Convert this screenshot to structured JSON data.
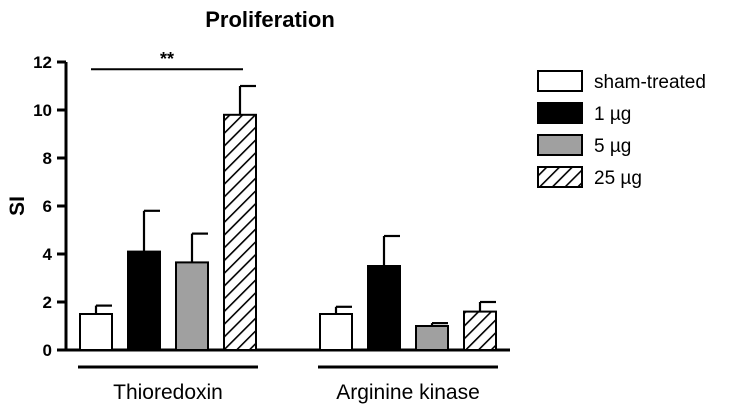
{
  "chart_data": {
    "type": "bar",
    "title": "Proliferation",
    "ylabel": "SI",
    "xlabel": "",
    "ylim": [
      0,
      12
    ],
    "yticks": [
      0,
      2,
      4,
      6,
      8,
      10,
      12
    ],
    "categories": [
      "Thioredoxin",
      "Arginine kinase"
    ],
    "series": [
      {
        "name": "sham-treated",
        "values": [
          1.5,
          1.5
        ],
        "errors": [
          0.35,
          0.3
        ],
        "fill": "#ffffff",
        "pattern": "none"
      },
      {
        "name": "1 µg",
        "values": [
          4.1,
          3.5
        ],
        "errors": [
          1.7,
          1.25
        ],
        "fill": "#000000",
        "pattern": "none"
      },
      {
        "name": "5 µg",
        "values": [
          3.65,
          1.0
        ],
        "errors": [
          1.2,
          0.12
        ],
        "fill": "#a0a0a0",
        "pattern": "none"
      },
      {
        "name": "25 µg",
        "values": [
          9.8,
          1.6
        ],
        "errors": [
          1.2,
          0.4
        ],
        "fill": "#ffffff",
        "pattern": "diagonal-hatch"
      }
    ],
    "annotations": [
      {
        "text": "**",
        "from_category": 0,
        "from_series": 0,
        "to_series": 3,
        "y": 11.7
      }
    ],
    "legend_position": "right",
    "grid": false
  }
}
